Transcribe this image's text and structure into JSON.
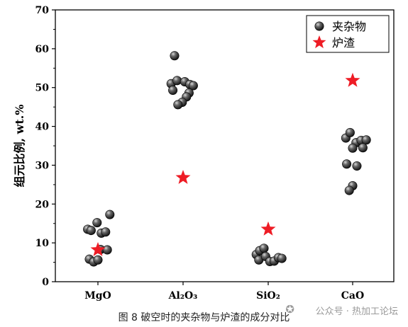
{
  "chart_data": {
    "type": "scatter",
    "ylabel": "组元比例, wt.%",
    "ylim": [
      0,
      70
    ],
    "yticks": [
      0,
      10,
      20,
      30,
      40,
      50,
      60,
      70
    ],
    "categories": [
      "MgO",
      "Al₂O₃",
      "SiO₂",
      "CaO"
    ],
    "category_labels": [
      {
        "base": "MgO",
        "sub": [
          "",
          ""
        ]
      },
      {
        "base": "Al",
        "sub": [
          "2",
          "O"
        ],
        "sub2": "3"
      },
      {
        "base": "Si",
        "sub": [
          "",
          ""
        ],
        "tail": "O",
        "sub2": "2"
      },
      {
        "base": "CaO"
      }
    ],
    "legend": {
      "position": "top-right",
      "items": [
        "夹杂物",
        "炉渣"
      ]
    },
    "series": [
      {
        "name": "夹杂物",
        "marker": "sphere",
        "points": [
          {
            "category": 0,
            "offset": -0.12,
            "y": 13.5
          },
          {
            "category": 0,
            "offset": -0.08,
            "y": 13.2
          },
          {
            "category": 0,
            "offset": -0.01,
            "y": 15.2
          },
          {
            "category": 0,
            "offset": 0.04,
            "y": 12.5
          },
          {
            "category": 0,
            "offset": 0.09,
            "y": 12.8
          },
          {
            "category": 0,
            "offset": 0.14,
            "y": 17.3
          },
          {
            "category": 0,
            "offset": -0.1,
            "y": 5.8
          },
          {
            "category": 0,
            "offset": -0.05,
            "y": 5.1
          },
          {
            "category": 0,
            "offset": 0.0,
            "y": 5.6
          },
          {
            "category": 0,
            "offset": 0.03,
            "y": 8.3
          },
          {
            "category": 0,
            "offset": 0.11,
            "y": 8.2
          },
          {
            "category": 1,
            "offset": -0.1,
            "y": 58.2
          },
          {
            "category": 1,
            "offset": -0.14,
            "y": 51.0
          },
          {
            "category": 1,
            "offset": -0.07,
            "y": 51.8
          },
          {
            "category": 1,
            "offset": 0.02,
            "y": 51.5
          },
          {
            "category": 1,
            "offset": 0.08,
            "y": 50.8
          },
          {
            "category": 1,
            "offset": 0.12,
            "y": 50.5
          },
          {
            "category": 1,
            "offset": -0.12,
            "y": 49.3
          },
          {
            "category": 1,
            "offset": 0.07,
            "y": 48.6
          },
          {
            "category": 1,
            "offset": 0.04,
            "y": 47.6
          },
          {
            "category": 1,
            "offset": -0.01,
            "y": 46.2
          },
          {
            "category": 1,
            "offset": -0.06,
            "y": 45.6
          },
          {
            "category": 2,
            "offset": -0.14,
            "y": 7.0
          },
          {
            "category": 2,
            "offset": -0.1,
            "y": 8.0
          },
          {
            "category": 2,
            "offset": -0.05,
            "y": 8.6
          },
          {
            "category": 2,
            "offset": -0.11,
            "y": 5.6
          },
          {
            "category": 2,
            "offset": -0.03,
            "y": 6.5
          },
          {
            "category": 2,
            "offset": 0.02,
            "y": 5.2
          },
          {
            "category": 2,
            "offset": 0.07,
            "y": 5.3
          },
          {
            "category": 2,
            "offset": 0.12,
            "y": 6.2
          },
          {
            "category": 2,
            "offset": 0.16,
            "y": 6.0
          },
          {
            "category": 3,
            "offset": -0.08,
            "y": 37.0
          },
          {
            "category": 3,
            "offset": -0.03,
            "y": 38.4
          },
          {
            "category": 3,
            "offset": 0.04,
            "y": 35.8
          },
          {
            "category": 3,
            "offset": 0.1,
            "y": 36.4
          },
          {
            "category": 3,
            "offset": 0.16,
            "y": 36.5
          },
          {
            "category": 3,
            "offset": 0.0,
            "y": 34.4
          },
          {
            "category": 3,
            "offset": 0.12,
            "y": 34.5
          },
          {
            "category": 3,
            "offset": -0.07,
            "y": 30.3
          },
          {
            "category": 3,
            "offset": 0.05,
            "y": 29.8
          },
          {
            "category": 3,
            "offset": 0.0,
            "y": 24.7
          },
          {
            "category": 3,
            "offset": -0.04,
            "y": 23.5
          }
        ]
      },
      {
        "name": "炉渣",
        "marker": "star",
        "color": "#ee1c25",
        "points": [
          {
            "category": 0,
            "offset": 0.0,
            "y": 8.2
          },
          {
            "category": 1,
            "offset": 0.0,
            "y": 26.8
          },
          {
            "category": 2,
            "offset": 0.0,
            "y": 13.5
          },
          {
            "category": 3,
            "offset": 0.0,
            "y": 51.8
          }
        ]
      }
    ]
  },
  "caption": "图 8   破空时的夹杂物与炉渣的成分对比",
  "watermark": "公众号 · 热加工论坛"
}
